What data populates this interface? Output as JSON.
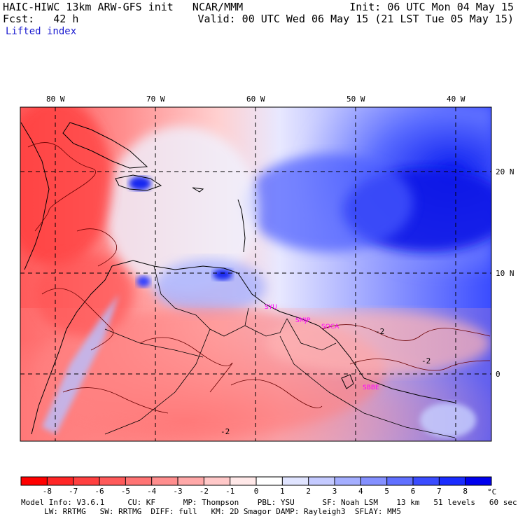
{
  "header": {
    "title": "HAIC-HIWC 13km ARW-GFS init   NCAR/MMM",
    "init": "Init: 06 UTC Mon 04 May 15",
    "fcst": "Fcst:   42 h",
    "valid": "Valid: 00 UTC Wed 06 May 15 (21 LST Tue 05 May 15)",
    "field": "Lifted index"
  },
  "map": {
    "lon_labels": [
      "80 W",
      "70 W",
      "60 W",
      "50 W",
      "40 W"
    ],
    "lat_labels": [
      "20 N",
      "10 N",
      "0"
    ],
    "stations": [
      "SYU",
      "SMJP",
      "SOCA",
      "SBBE"
    ],
    "contour_labels": [
      "-2",
      "-2",
      "-2"
    ]
  },
  "colorbar": {
    "ticks": [
      "-8",
      "-7",
      "-6",
      "-5",
      "-4",
      "-3",
      "-2",
      "-1",
      "0",
      "1",
      "2",
      "3",
      "4",
      "5",
      "6",
      "7",
      "8"
    ],
    "unit": "°C",
    "colors": [
      "#ff0000",
      "#ff2626",
      "#ff4040",
      "#ff5a5a",
      "#ff7474",
      "#ff8e8e",
      "#ffa8a8",
      "#ffc8c8",
      "#ffe8e8",
      "#ffffff",
      "#e0e4ff",
      "#c4caff",
      "#a4aeff",
      "#8490ff",
      "#6070ff",
      "#3a4cff",
      "#1a2cff",
      "#0000ee"
    ]
  },
  "footer": {
    "line1": "Model Info: V3.6.1     CU: KF      MP: Thompson    PBL: YSU      SF: Noah LSM    13 km   51 levels   60 sec",
    "line2": "     LW: RRTMG   SW: RRTMG  DIFF: full   KM: 2D Smagor DAMP: Rayleigh3  SFLAY: MM5"
  }
}
